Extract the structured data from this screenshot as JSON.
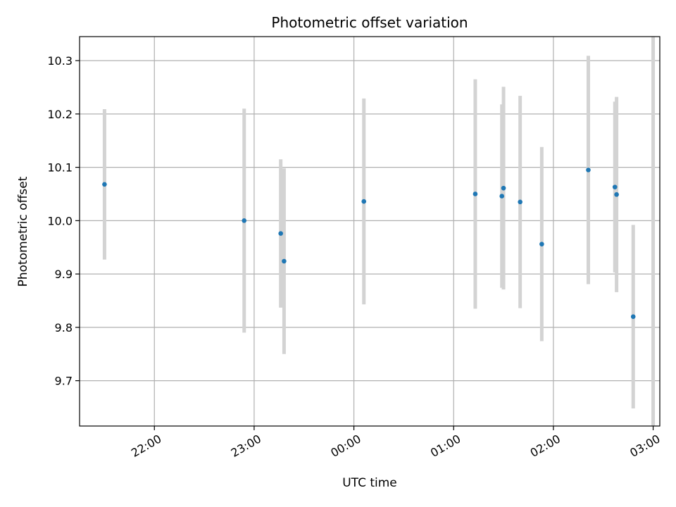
{
  "chart_data": {
    "type": "scatter",
    "title": "Photometric offset variation",
    "xlabel": "UTC time",
    "ylabel": "Photometric offset",
    "x_ticks": [
      "22:00",
      "23:00",
      "00:00",
      "01:00",
      "02:00",
      "03:00"
    ],
    "y_ticks": [
      "9.7",
      "9.8",
      "9.9",
      "10.0",
      "10.1",
      "10.2",
      "10.3"
    ],
    "x_tick_values": [
      "22:00",
      "23:00",
      "00:00",
      "01:00",
      "02:00",
      "03:00"
    ],
    "y_tick_values": [
      9.7,
      9.8,
      9.9,
      10.0,
      10.1,
      10.2,
      10.3
    ],
    "xlim": [
      "21:15",
      "03:04"
    ],
    "ylim": [
      9.615,
      10.345
    ],
    "grid": true,
    "colors": {
      "point": "#1f77b4",
      "errorbar": "#d3d3d3",
      "grid": "#b0b0b0"
    },
    "points": [
      {
        "time": "21:30",
        "y": 10.068,
        "err": 0.141
      },
      {
        "time": "22:54",
        "y": 10.0,
        "err": 0.21
      },
      {
        "time": "23:16",
        "y": 9.976,
        "err": 0.139
      },
      {
        "time": "23:18",
        "y": 9.924,
        "err": 0.174
      },
      {
        "time": "00:06",
        "y": 10.036,
        "err": 0.193
      },
      {
        "time": "01:13",
        "y": 10.05,
        "err": 0.215
      },
      {
        "time": "01:29",
        "y": 10.046,
        "err": 0.172
      },
      {
        "time": "01:30",
        "y": 10.061,
        "err": 0.19
      },
      {
        "time": "01:40",
        "y": 10.035,
        "err": 0.199
      },
      {
        "time": "01:53",
        "y": 9.956,
        "err": 0.182
      },
      {
        "time": "02:21",
        "y": 10.095,
        "err": 0.214
      },
      {
        "time": "02:37",
        "y": 10.063,
        "err": 0.16
      },
      {
        "time": "02:38",
        "y": 10.049,
        "err": 0.183
      },
      {
        "time": "02:48",
        "y": 9.82,
        "err": 0.172
      },
      {
        "time": "03:00",
        "y": null,
        "err": null,
        "y_low": 9.615,
        "y_high": 10.345
      }
    ]
  }
}
